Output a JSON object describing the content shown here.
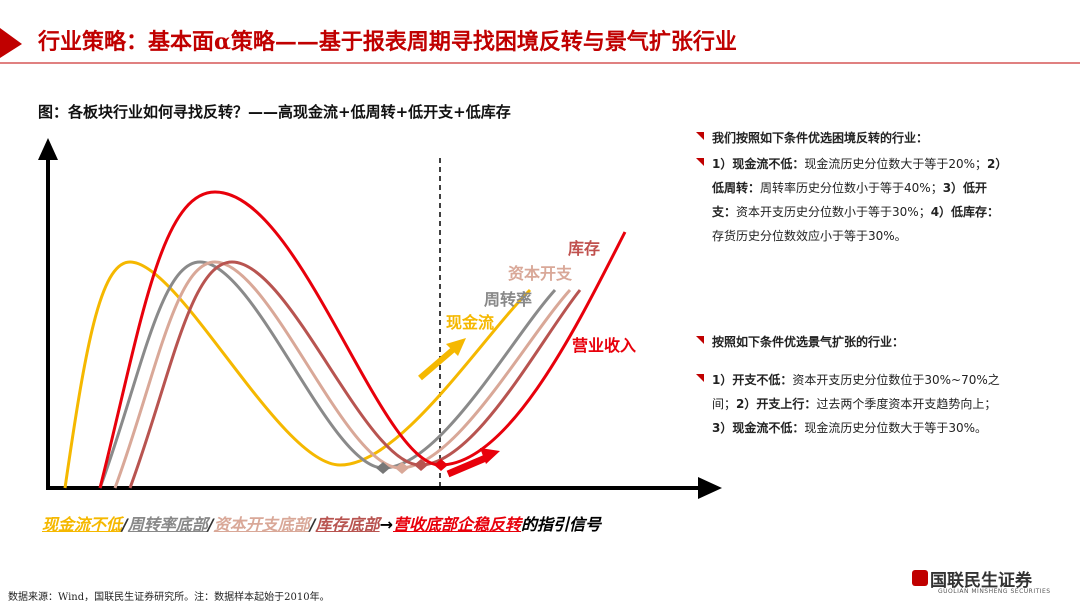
{
  "header": {
    "title": "行业策略：基本面α策略——基于报表周期寻找困境反转与景气扩张行业"
  },
  "figure": {
    "caption": "图：各板块行业如何寻找反转？——高现金流+低周转+低开支+低库存",
    "curve_labels": [
      "库存",
      "资本开支",
      "周转率",
      "现金流",
      "营业收入"
    ],
    "signal": [
      "现金流不低",
      "/",
      "周转率底部",
      "/",
      "资本开支底部",
      "/",
      "库存底部",
      "→",
      "营收底部企稳反转",
      "的指引信号"
    ]
  },
  "sections": [
    {
      "heading": "我们按照如下条件优选困境反转的行业：",
      "runs": [
        "1）现金流不低：",
        "现金流历史分位数大于等于20%；",
        "2）低周转：",
        "周转率历史分位数小于等于40%；",
        "3）低开支：",
        "资本开支历史分位数小于等于30%；",
        "4）低库存：",
        "存货历史分位数效应小于等于30%。"
      ]
    },
    {
      "heading": "按照如下条件优选景气扩张的行业：",
      "runs": [
        "1）开支不低：",
        "资本开支历史分位数位于30%~70%之间；",
        "2）开支上行：",
        "过去两个季度资本开支趋势向上；",
        "3）现金流不低：",
        "现金流历史分位数大于等于30%。"
      ]
    }
  ],
  "footer": {
    "source": "数据来源：Wind，国联民生证券研究所。注：数据样本起始于2010年。",
    "logo": "国联民生证券",
    "logo_en": "GUOLIAN MINSHENG SECURITIES"
  }
}
